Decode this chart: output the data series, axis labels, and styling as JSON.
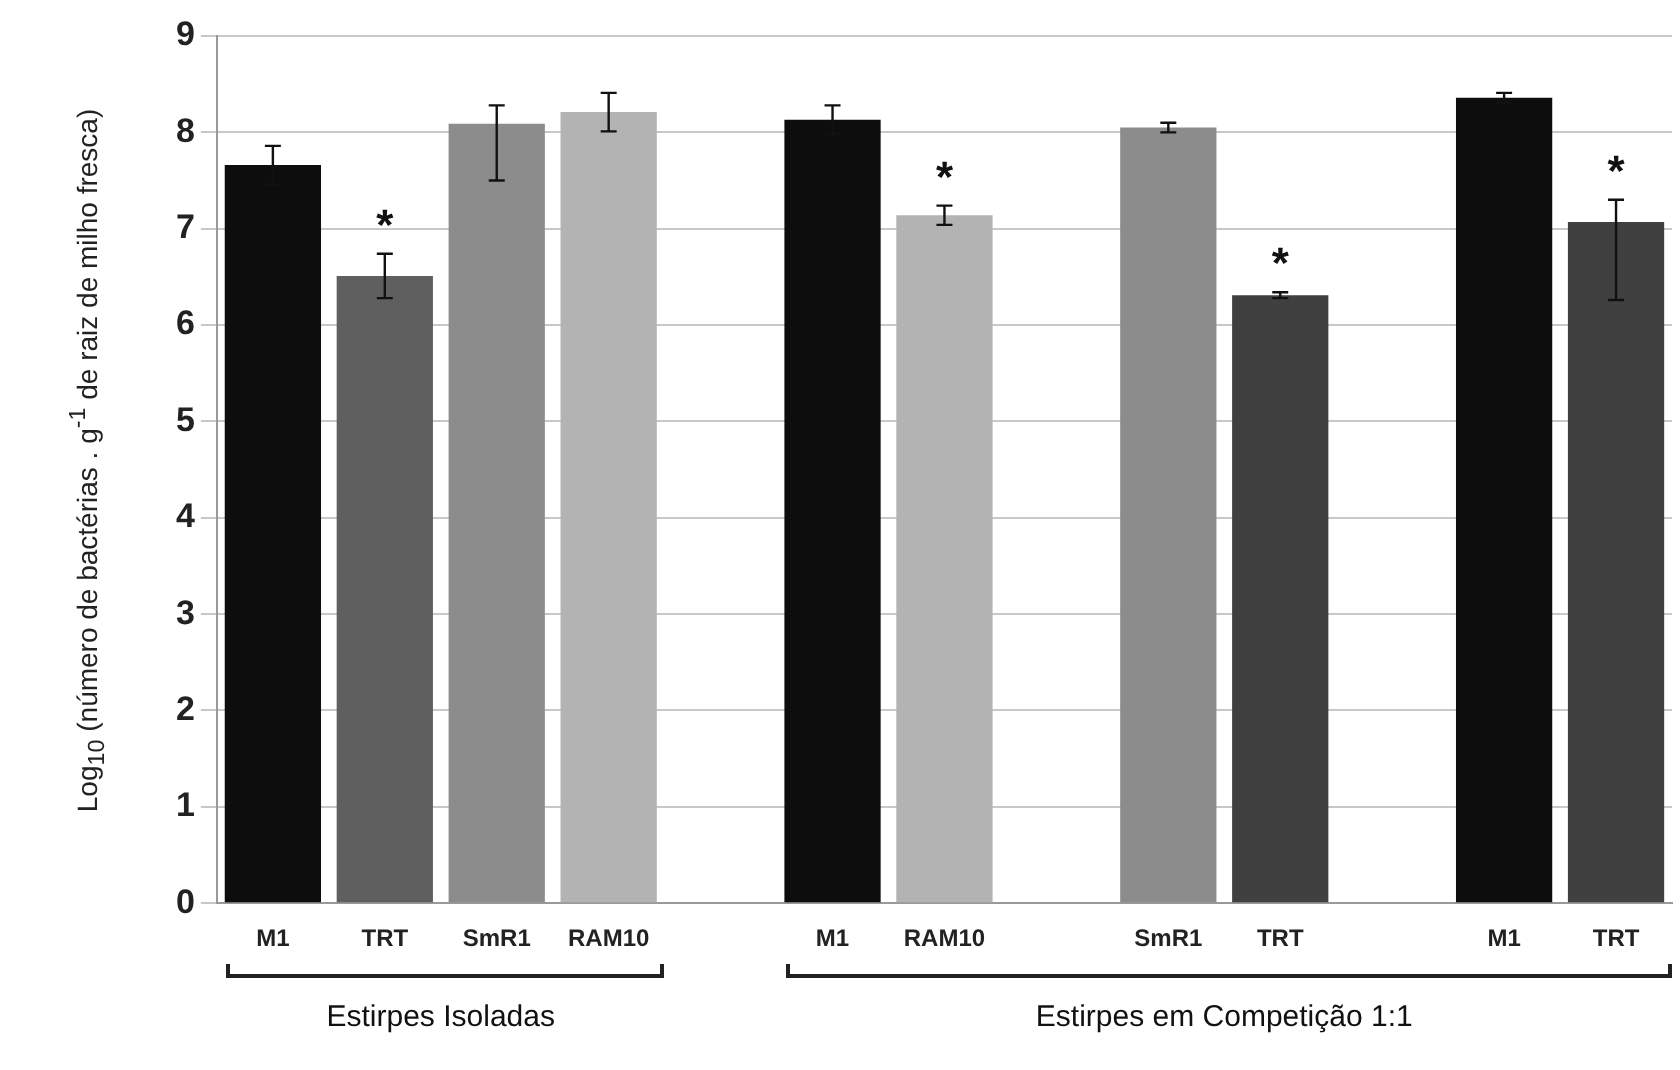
{
  "chart_data": {
    "type": "bar",
    "ylabel": "Log$_{10}$ (número de bactérias . g$^{-1}$ de raiz de milho fresca)",
    "categories": [
      "M1",
      "TRT",
      "SmR1",
      "RAM10",
      null,
      "M1",
      "RAM10",
      null,
      "SmR1",
      "TRT",
      null,
      "M1",
      "TRT"
    ],
    "values": [
      7.66,
      6.51,
      8.09,
      8.21,
      null,
      8.13,
      7.14,
      null,
      8.05,
      6.31,
      null,
      8.36,
      7.07
    ],
    "colors": [
      "#0d0d0d",
      "#5f5f5f",
      "#8c8c8c",
      "#b3b3b3",
      "#ffffff",
      "#0d0d0d",
      "#b3b3b3",
      "#ffffff",
      "#8c8c8c",
      "#404040",
      "#ffffff",
      "#0d0d0d",
      "#404040"
    ],
    "errors": [
      0.2,
      0.23,
      [
        7.5,
        8.28
      ],
      0.2,
      null,
      0.15,
      0.1,
      null,
      0.05,
      0.03,
      null,
      0.05,
      [
        6.26,
        7.3
      ]
    ],
    "value_labels": [
      null,
      "*",
      null,
      null,
      null,
      null,
      "*",
      null,
      null,
      "*",
      null,
      null,
      "*"
    ],
    "annotations": [
      "Estirpes Isoladas",
      "Estirpes em Competição 1:1"
    ],
    "ylim": [
      0,
      9
    ],
    "yticks": [
      0,
      1,
      2,
      3,
      4,
      5,
      6,
      7,
      8,
      9
    ],
    "grid": "y",
    "legend": false
  }
}
